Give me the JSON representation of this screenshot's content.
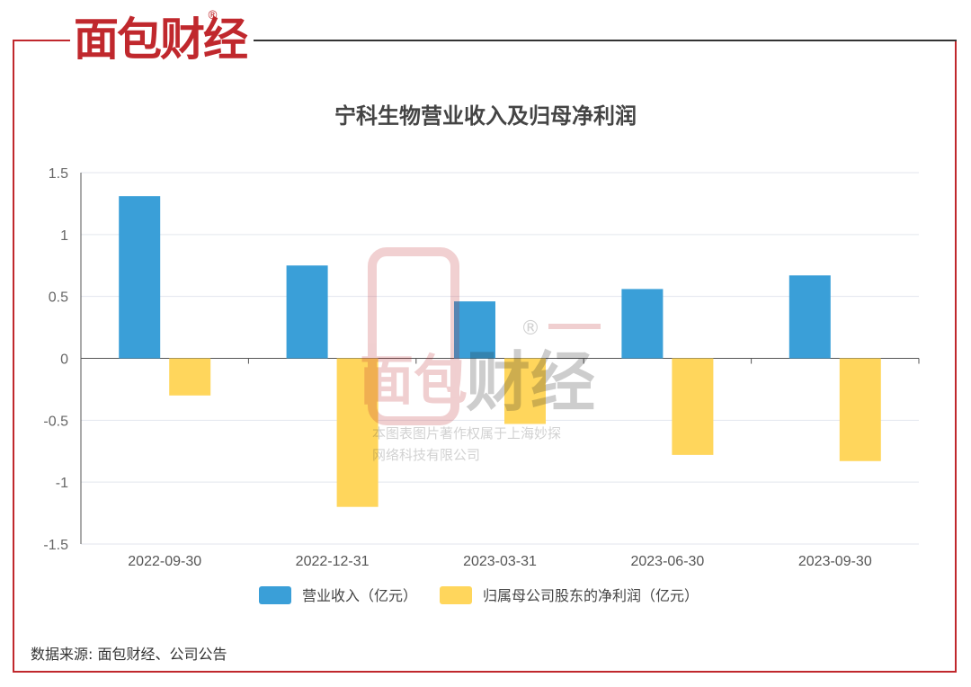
{
  "logo": {
    "text": "面包财经",
    "registered": "®"
  },
  "source": "数据来源: 面包财经、公司公告",
  "watermark": {
    "logo": "面包财经",
    "registered": "®",
    "line1": "本图表图片著作权属于上海妙探",
    "line2": "网络科技有限公司"
  },
  "colors": {
    "revenue": "#3a9fd8",
    "profit": "#ffd65c",
    "frame": "#c0282d"
  },
  "chart_data": {
    "type": "bar",
    "title": "宁科生物营业收入及归母净利润",
    "categories": [
      "2022-09-30",
      "2022-12-31",
      "2023-03-31",
      "2023-06-30",
      "2023-09-30"
    ],
    "series": [
      {
        "name": "营业收入（亿元）",
        "values": [
          1.31,
          0.75,
          0.46,
          0.56,
          0.67
        ]
      },
      {
        "name": "归属母公司股东的净利润（亿元）",
        "values": [
          -0.3,
          -1.2,
          -0.53,
          -0.78,
          -0.83
        ]
      }
    ],
    "ylim": [
      -1.5,
      1.5
    ],
    "yticks": [
      "1.5",
      "1",
      "0.5",
      "0",
      "-0.5",
      "-1",
      "-1.5"
    ],
    "grid": true,
    "legend": "bottom"
  }
}
